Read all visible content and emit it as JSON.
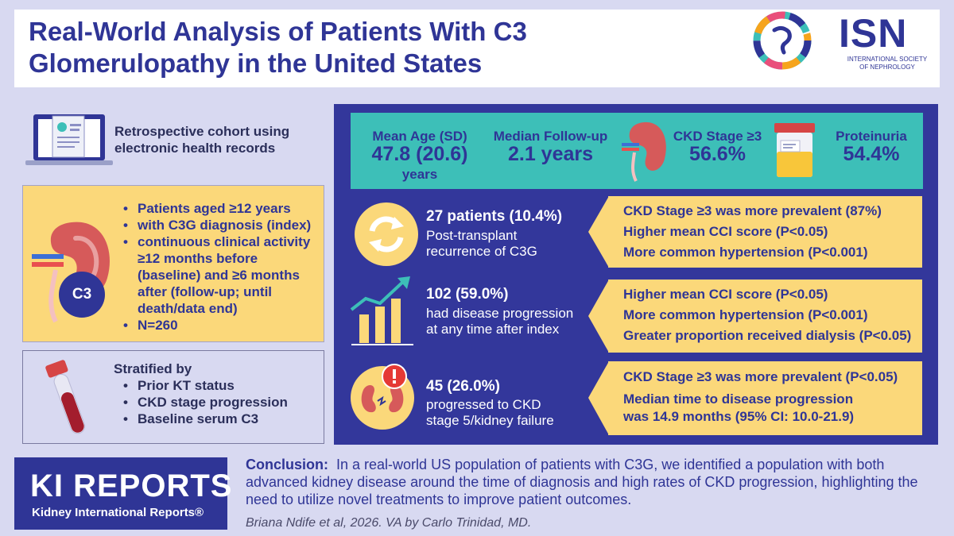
{
  "header": {
    "title_line1": "Real-World Analysis of Patients With C3",
    "title_line2": "Glomerulopathy in the United States"
  },
  "isn_logo": {
    "acronym": "ISN",
    "subtitle_line1": "INTERNATIONAL SOCIETY",
    "subtitle_line2": "OF NEPHROLOGY"
  },
  "cohort": {
    "line1": "Retrospective cohort using",
    "line2": "electronic health records"
  },
  "criteria": {
    "badge": "C3",
    "items": [
      "Patients aged ≥12 years",
      "with C3G diagnosis (index)",
      "continuous clinical activity ≥12 months before (baseline) and ≥6 months after (follow-up; until death/data end)",
      "N=260"
    ]
  },
  "stratified": {
    "title": "Stratified by",
    "items": [
      "Prior KT status",
      "CKD stage progression",
      "Baseline serum C3"
    ]
  },
  "stats": {
    "mean_age_label": "Mean Age (SD)",
    "mean_age_value": "47.8 (20.6)",
    "mean_age_unit": "years",
    "followup_label": "Median Follow-up",
    "followup_value": "2.1 years",
    "ckd_label": "CKD Stage ≥3",
    "ckd_value": "56.6%",
    "proteinuria_label": "Proteinuria",
    "proteinuria_value": "54.4%"
  },
  "findings": [
    {
      "head": "27 patients (10.4%)",
      "desc_line1": "Post-transplant",
      "desc_line2": "recurrence of C3G",
      "details": [
        "CKD Stage ≥3 was more prevalent (87%)",
        "Higher mean CCI score (P<0.05)",
        "More common hypertension (P<0.001)"
      ]
    },
    {
      "head": "102 (59.0%)",
      "desc_line1": "had disease progression",
      "desc_line2": "at any time after index",
      "details": [
        "Higher mean CCI score (P<0.05)",
        "More common hypertension (P<0.001)",
        "Greater proportion received dialysis (P<0.05)"
      ]
    },
    {
      "head": "45 (26.0%)",
      "desc_line1": "progressed to CKD",
      "desc_line2": "stage 5/kidney failure",
      "details": [
        "CKD Stage ≥3 was more prevalent (P<0.05)",
        "Median time to disease progression",
        "was 14.9 months (95% CI: 10.0-21.9)"
      ]
    }
  ],
  "journal": {
    "title": "KI REPORTS",
    "subtitle": "Kidney International Reports®"
  },
  "conclusion": {
    "label": "Conclusion:",
    "text": "In a real-world US population of patients with C3G, we identified a population with both advanced kidney disease around the time of diagnosis and high rates of CKD progression, highlighting the need to utilize novel treatments to improve patient outcomes."
  },
  "credit": "Briana Ndife et al, 2026. VA by Carlo Trinidad, MD.",
  "colors": {
    "navy": "#2f3596",
    "panel": "#33379b",
    "teal": "#3dbfb8",
    "yellow": "#fbd87a",
    "lavender": "#d8d9f1"
  }
}
